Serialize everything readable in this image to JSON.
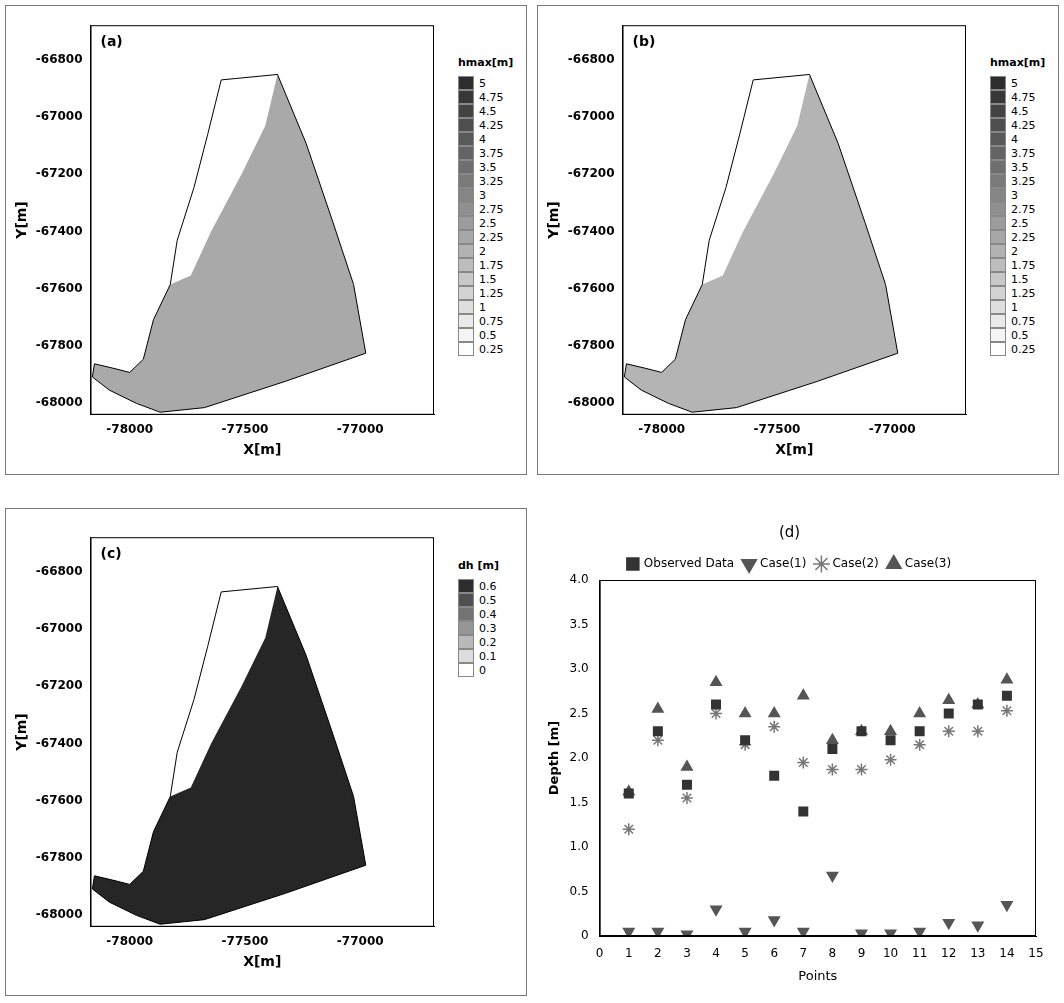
{
  "chart_data": [
    {
      "type": "map",
      "title": "(a)",
      "xlabel": "X[m]",
      "ylabel": "Y[m]",
      "xlim": [
        -78170,
        -76680
      ],
      "ylim": [
        -68040,
        -66680
      ],
      "xticks": [
        -78000,
        -77500,
        -77000
      ],
      "yticks": [
        -66800,
        -67000,
        -67200,
        -67400,
        -67600,
        -67800,
        -68000
      ],
      "grid": false,
      "boundary": {
        "x": [
          -77603,
          -77359,
          -77235,
          -77118,
          -77029,
          -76976,
          -77324,
          -77676,
          -77868,
          -77971,
          -78088,
          -78162,
          -78153,
          -78074,
          -78000,
          -77941,
          -77897,
          -77824,
          -77794,
          -77721,
          -77662
        ],
        "y": [
          -66871,
          -66852,
          -67092,
          -67369,
          -67585,
          -67825,
          -67923,
          -68015,
          -68031,
          -68000,
          -67954,
          -67908,
          -67862,
          -67877,
          -67892,
          -67846,
          -67708,
          -67585,
          -67431,
          -67246,
          -67062
        ]
      },
      "wet_area": {
        "x": [
          -77359,
          -77235,
          -77118,
          -77029,
          -76976,
          -77324,
          -77676,
          -77868,
          -77971,
          -78088,
          -78162,
          -78153,
          -78074,
          -78000,
          -77941,
          -77897,
          -77824,
          -77735,
          -77647,
          -77515,
          -77412
        ],
        "y": [
          -66852,
          -67092,
          -67369,
          -67585,
          -67825,
          -67923,
          -68015,
          -68031,
          -68000,
          -67954,
          -67908,
          -67862,
          -67877,
          -67892,
          -67846,
          -67708,
          -67585,
          -67554,
          -67400,
          -67200,
          -67031
        ],
        "color": "#a9a9a9"
      },
      "colorbar": {
        "title": "hmax[m]",
        "ticks": [
          5,
          4.75,
          4.5,
          4.25,
          4,
          3.75,
          3.5,
          3.25,
          3,
          2.75,
          2.5,
          2.25,
          2,
          1.75,
          1.5,
          1.25,
          1,
          0.75,
          0.5,
          0.25
        ]
      }
    },
    {
      "type": "map",
      "title": "(b)",
      "xlabel": "X[m]",
      "ylabel": "Y[m]",
      "xlim": [
        -78170,
        -76680
      ],
      "ylim": [
        -68040,
        -66680
      ],
      "xticks": [
        -78000,
        -77500,
        -77000
      ],
      "yticks": [
        -66800,
        -67000,
        -67200,
        -67400,
        -67600,
        -67800,
        -68000
      ],
      "grid": false,
      "boundary": {
        "x": [
          -77603,
          -77359,
          -77235,
          -77118,
          -77029,
          -76976,
          -77324,
          -77676,
          -77868,
          -77971,
          -78088,
          -78162,
          -78153,
          -78074,
          -78000,
          -77941,
          -77897,
          -77824,
          -77794,
          -77721,
          -77662
        ],
        "y": [
          -66871,
          -66852,
          -67092,
          -67369,
          -67585,
          -67825,
          -67923,
          -68015,
          -68031,
          -68000,
          -67954,
          -67908,
          -67862,
          -67877,
          -67892,
          -67846,
          -67708,
          -67585,
          -67431,
          -67246,
          -67062
        ]
      },
      "wet_area": {
        "x": [
          -77359,
          -77235,
          -77118,
          -77029,
          -76976,
          -77324,
          -77676,
          -77868,
          -77971,
          -78088,
          -78162,
          -78153,
          -78074,
          -78000,
          -77941,
          -77897,
          -77824,
          -77735,
          -77647,
          -77515,
          -77412
        ],
        "y": [
          -66852,
          -67092,
          -67369,
          -67585,
          -67825,
          -67923,
          -68015,
          -68031,
          -68000,
          -67954,
          -67908,
          -67862,
          -67877,
          -67892,
          -67846,
          -67708,
          -67585,
          -67554,
          -67400,
          -67200,
          -67031
        ],
        "color": "#b4b4b4"
      },
      "colorbar": {
        "title": "hmax[m]",
        "ticks": [
          5,
          4.75,
          4.5,
          4.25,
          4,
          3.75,
          3.5,
          3.25,
          3,
          2.75,
          2.5,
          2.25,
          2,
          1.75,
          1.5,
          1.25,
          1,
          0.75,
          0.5,
          0.25
        ]
      }
    },
    {
      "type": "map",
      "title": "(c)",
      "xlabel": "X[m]",
      "ylabel": "Y[m]",
      "xlim": [
        -78170,
        -76680
      ],
      "ylim": [
        -68040,
        -66680
      ],
      "xticks": [
        -78000,
        -77500,
        -77000
      ],
      "yticks": [
        -66800,
        -67000,
        -67200,
        -67400,
        -67600,
        -67800,
        -68000
      ],
      "grid": false,
      "boundary": {
        "x": [
          -77603,
          -77359,
          -77235,
          -77118,
          -77029,
          -76976,
          -77324,
          -77676,
          -77868,
          -77971,
          -78088,
          -78162,
          -78153,
          -78074,
          -78000,
          -77941,
          -77897,
          -77824,
          -77794,
          -77721,
          -77662
        ],
        "y": [
          -66871,
          -66852,
          -67092,
          -67369,
          -67585,
          -67825,
          -67923,
          -68015,
          -68031,
          -68000,
          -67954,
          -67908,
          -67862,
          -67877,
          -67892,
          -67846,
          -67708,
          -67585,
          -67431,
          -67246,
          -67062
        ]
      },
      "wet_area": {
        "x": [
          -77359,
          -77235,
          -77118,
          -77029,
          -76976,
          -77324,
          -77676,
          -77868,
          -77971,
          -78088,
          -78162,
          -78153,
          -78074,
          -78000,
          -77941,
          -77897,
          -77824,
          -77735,
          -77647,
          -77515,
          -77412
        ],
        "y": [
          -66852,
          -67092,
          -67369,
          -67585,
          -67825,
          -67923,
          -68015,
          -68031,
          -68000,
          -67954,
          -67908,
          -67862,
          -67877,
          -67892,
          -67846,
          -67708,
          -67585,
          -67554,
          -67400,
          -67200,
          -67031
        ],
        "color": "#262626"
      },
      "colorbar": {
        "title": "dh [m]",
        "ticks": [
          0.6,
          0.5,
          0.4,
          0.3,
          0.2,
          0.1,
          0
        ]
      }
    },
    {
      "type": "scatter",
      "title": "(d)",
      "xlabel": "Points",
      "ylabel": "Depth [m]",
      "xlim": [
        0,
        15
      ],
      "ylim": [
        0,
        4
      ],
      "xticks": [
        0,
        1,
        2,
        3,
        4,
        5,
        6,
        7,
        8,
        9,
        10,
        11,
        12,
        13,
        14,
        15
      ],
      "yticks": [
        0,
        0.5,
        1,
        1.5,
        2,
        2.5,
        3,
        3.5,
        4
      ],
      "grid": false,
      "legend": "top",
      "x": [
        1,
        2,
        3,
        4,
        5,
        6,
        7,
        8,
        9,
        10,
        11,
        12,
        13,
        14
      ],
      "series": [
        {
          "name": "Observed Data",
          "color": "#333333",
          "marker": "square",
          "values": [
            1.6,
            2.3,
            1.7,
            2.6,
            2.2,
            1.8,
            1.4,
            2.1,
            2.3,
            2.2,
            2.3,
            2.5,
            2.6,
            2.7
          ]
        },
        {
          "name": "Case(1)",
          "color": "#555555",
          "marker": "triangle_down",
          "values": [
            0.05,
            0.05,
            0.02,
            0.3,
            0.05,
            0.18,
            0.05,
            0.68,
            0.03,
            0.03,
            0.05,
            0.15,
            0.12,
            0.35
          ]
        },
        {
          "name": "Case(2)",
          "color": "#777777",
          "marker": "asterisk",
          "values": [
            1.2,
            2.2,
            1.55,
            2.5,
            2.15,
            2.35,
            1.95,
            1.87,
            1.87,
            1.98,
            2.15,
            2.3,
            2.3,
            2.53
          ]
        },
        {
          "name": "Case(3)",
          "color": "#555555",
          "marker": "triangle",
          "values": [
            1.62,
            2.55,
            1.9,
            2.85,
            2.5,
            2.5,
            2.7,
            2.2,
            2.3,
            2.3,
            2.5,
            2.65,
            2.6,
            2.88
          ]
        }
      ]
    }
  ]
}
